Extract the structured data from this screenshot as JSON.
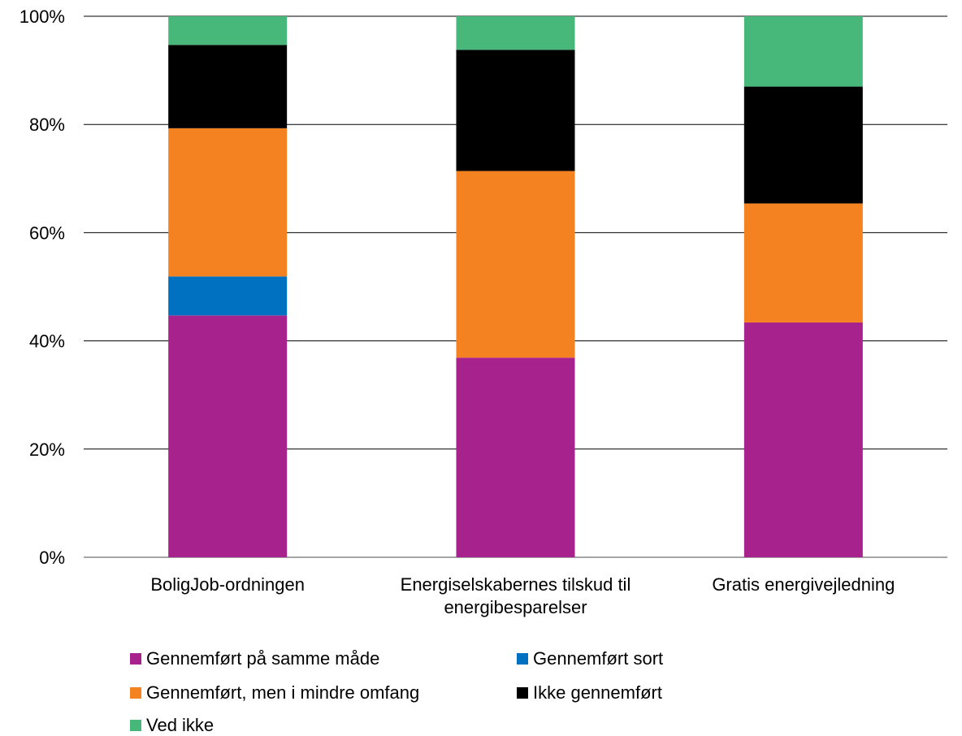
{
  "chart_data": {
    "type": "bar",
    "stacked": true,
    "categories": [
      [
        "BoligJob-ordningen"
      ],
      [
        "Energiselskabernes tilskud til",
        "energibesparelser"
      ],
      [
        "Gratis energivejledning"
      ]
    ],
    "series": [
      {
        "name": "Gennemført på samme måde",
        "color": "#A8228E",
        "values": [
          44.7,
          36.9,
          43.4
        ]
      },
      {
        "name": "Gennemført sort",
        "color": "#0070C0",
        "values": [
          7.2,
          0,
          0
        ]
      },
      {
        "name": "Gennemført, men i mindre omfang",
        "color": "#F58220",
        "values": [
          27.4,
          34.5,
          22.0
        ]
      },
      {
        "name": "Ikke gennemført",
        "color": "#000000",
        "values": [
          15.4,
          22.4,
          21.6
        ]
      },
      {
        "name": "Ved ikke",
        "color": "#47B87A",
        "values": [
          5.3,
          6.2,
          13.0
        ]
      }
    ],
    "ylim": [
      0,
      100
    ],
    "yticks": [
      "0%",
      "20%",
      "40%",
      "60%",
      "80%",
      "100%"
    ],
    "grid": true,
    "legend_position": "bottom"
  }
}
